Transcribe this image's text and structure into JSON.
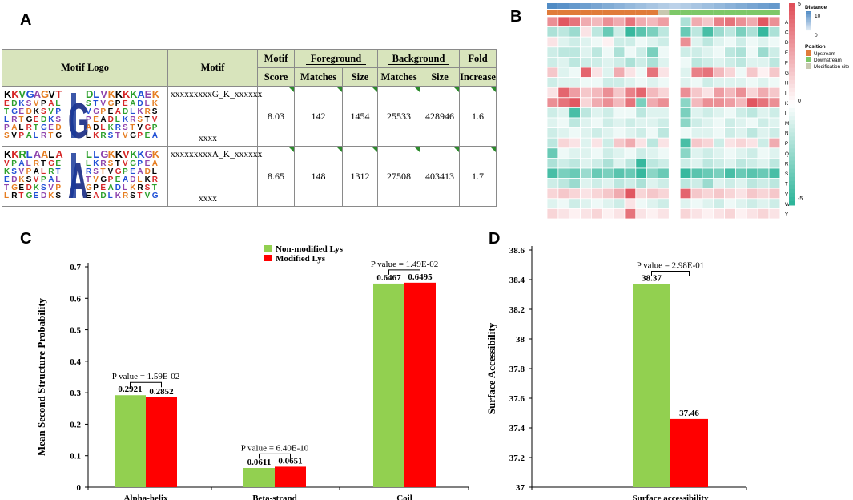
{
  "panel_labels": {
    "a": "A",
    "b": "B",
    "c": "C",
    "d": "D"
  },
  "panelA": {
    "headers": {
      "motif_logo": "Motif Logo",
      "motif": "Motif",
      "motif_score_1": "Motif",
      "motif_score_2": "Score",
      "foreground": "Foreground",
      "background": "Background",
      "fold_1": "Fold",
      "fold_2": "Increase",
      "matches": "Matches",
      "size": "Size"
    },
    "rows": [
      {
        "motif_line1": "xxxxxxxxxG_K_xxxxxx",
        "motif_line2": "xxxx",
        "score": "8.03",
        "fg_matches": "142",
        "fg_size": "1454",
        "bg_matches": "25533",
        "bg_size": "428946",
        "fold": "1.6",
        "logo_left": "KKVGAGVT",
        "logo_center": "G",
        "logo_right": "DLVKKKKAEK"
      },
      {
        "motif_line1": "xxxxxxxxxA_K_xxxxxx",
        "motif_line2": "xxxx",
        "score": "8.65",
        "fg_matches": "148",
        "fg_size": "1312",
        "bg_matches": "27508",
        "bg_size": "403413",
        "fold": "1.7",
        "logo_left": "KKRLAALA",
        "logo_center": "A",
        "logo_right": "LLGKKVKKGK"
      }
    ]
  },
  "panelB": {
    "row_labels": [
      "A",
      "C",
      "D",
      "E",
      "F",
      "G",
      "H",
      "I",
      "K",
      "L",
      "M",
      "N",
      "P",
      "Q",
      "R",
      "S",
      "T",
      "V",
      "W",
      "Y"
    ],
    "colorbar_ticks": [
      "5",
      "0",
      "-5"
    ],
    "distance_title": "Distance",
    "distance_ticks": [
      "10",
      "0"
    ],
    "position_title": "Position",
    "position_items": [
      "Upstream",
      "Downstream",
      "Modification site"
    ],
    "colors": {
      "high": "#e0505a",
      "mid": "#ffffff",
      "low": "#2fb59a",
      "upstream": "#e07b39",
      "downstream": "#7dc868",
      "site": "#c8c8b0",
      "distance": "#3e7fbf"
    },
    "num_columns": 21,
    "matrix": [
      [
        1.6,
        2.4,
        2.0,
        1.2,
        1.0,
        1.6,
        1.2,
        2.0,
        1.2,
        1.0,
        1.4,
        0,
        -1.0,
        1.2,
        0.8,
        1.8,
        2.0,
        1.6,
        1.2,
        2.4,
        1.6
      ],
      [
        -1.0,
        -0.8,
        -1.2,
        0.4,
        -0.8,
        -1.8,
        -0.6,
        -2.4,
        -2.0,
        -1.6,
        -0.8,
        0,
        -1.8,
        -0.8,
        -2.2,
        -1.2,
        -0.8,
        -1.6,
        -1.0,
        -2.4,
        -1.0
      ],
      [
        0.4,
        -0.4,
        -0.6,
        -0.4,
        -0.2,
        0.2,
        -0.6,
        -0.6,
        -0.2,
        -0.4,
        -0.6,
        0,
        1.6,
        -0.4,
        -0.8,
        -0.4,
        -0.2,
        -0.6,
        -0.2,
        -0.4,
        -0.2
      ],
      [
        -0.6,
        -0.8,
        -0.8,
        -0.4,
        -0.8,
        -0.2,
        -1.0,
        -0.2,
        -0.6,
        -1.6,
        -0.2,
        0,
        -0.6,
        -0.6,
        -0.4,
        -0.2,
        -0.8,
        -1.0,
        -0.2,
        -1.2,
        -0.6
      ],
      [
        -0.6,
        -0.4,
        -0.8,
        -0.6,
        -0.6,
        -0.4,
        -0.6,
        -1.0,
        -0.6,
        -1.0,
        -0.4,
        0,
        -0.2,
        -0.8,
        -0.6,
        -0.4,
        -0.6,
        -0.8,
        -0.4,
        -0.4,
        -0.8
      ],
      [
        0.8,
        -0.4,
        -0.2,
        2.2,
        0.4,
        -0.4,
        1.2,
        0.4,
        -0.2,
        2.0,
        0.4,
        0,
        -0.4,
        1.8,
        2.0,
        1.0,
        0.6,
        -0.2,
        0.8,
        0.2,
        0.8
      ],
      [
        -0.6,
        -0.4,
        -0.4,
        -0.2,
        -0.2,
        -0.6,
        -0.6,
        -0.4,
        -0.2,
        -0.4,
        -0.2,
        0,
        -0.4,
        -0.2,
        -0.6,
        -0.4,
        -0.4,
        -0.4,
        -0.2,
        -0.4,
        -0.2
      ],
      [
        0.4,
        2.2,
        1.4,
        0.8,
        1.0,
        1.6,
        0.8,
        1.8,
        2.2,
        1.0,
        0.6,
        0,
        1.6,
        0.8,
        0.4,
        1.4,
        1.0,
        1.6,
        0.6,
        1.2,
        0.8
      ],
      [
        1.6,
        2.0,
        2.4,
        0.6,
        1.2,
        1.6,
        1.0,
        2.0,
        -1.6,
        1.2,
        1.6,
        0,
        -1.4,
        1.0,
        1.6,
        1.6,
        1.4,
        1.0,
        2.4,
        2.0,
        1.6
      ],
      [
        -0.6,
        -0.4,
        -2.2,
        -0.8,
        -0.4,
        -0.6,
        -0.2,
        -0.2,
        -0.8,
        -0.4,
        -0.4,
        0,
        -1.6,
        -0.4,
        -0.6,
        -0.4,
        -0.2,
        -0.6,
        -0.8,
        -0.4,
        -0.6
      ],
      [
        -0.4,
        -0.2,
        -0.8,
        -0.4,
        -0.2,
        -0.6,
        -0.4,
        -0.6,
        -0.4,
        -0.4,
        -0.6,
        0,
        -1.4,
        -0.6,
        -0.4,
        -0.2,
        -0.6,
        -0.4,
        -0.2,
        -0.6,
        -0.4
      ],
      [
        -0.6,
        -0.4,
        -0.2,
        -0.4,
        -0.6,
        -0.4,
        -0.2,
        -0.4,
        -0.6,
        -0.2,
        -0.8,
        0,
        -0.2,
        -0.4,
        -0.4,
        -0.2,
        -0.6,
        -0.4,
        -0.8,
        -0.4,
        -0.6
      ],
      [
        -0.8,
        0.6,
        0.4,
        -0.4,
        0.4,
        -0.6,
        0.8,
        1.2,
        0.4,
        -0.8,
        0.4,
        0,
        -2.2,
        0.8,
        0.6,
        -0.6,
        0.4,
        0.6,
        0.4,
        -0.6,
        1.2
      ],
      [
        -1.8,
        -0.2,
        -0.4,
        -0.4,
        -0.2,
        -0.6,
        -0.4,
        -0.2,
        -0.6,
        -0.4,
        -0.2,
        0,
        -1.4,
        -0.4,
        -0.6,
        -0.4,
        -0.2,
        -0.4,
        -0.6,
        -0.2,
        -0.4
      ],
      [
        -1.0,
        -0.6,
        -0.8,
        -0.4,
        -0.6,
        -1.0,
        -0.4,
        -0.8,
        -2.4,
        -0.8,
        -0.6,
        0,
        -0.6,
        -0.4,
        -0.8,
        -0.6,
        -0.4,
        -0.8,
        -0.6,
        -0.4,
        -0.8
      ],
      [
        -2.2,
        -1.6,
        -1.8,
        -1.2,
        -1.8,
        -1.6,
        -2.0,
        -1.8,
        -2.4,
        -1.4,
        -1.8,
        0,
        -2.4,
        -2.0,
        -1.8,
        -1.6,
        -2.2,
        -1.8,
        -2.0,
        -1.8,
        -2.2
      ],
      [
        -0.6,
        -0.8,
        -1.2,
        -0.4,
        -0.6,
        -0.4,
        -0.8,
        -0.6,
        -1.0,
        -0.4,
        -0.6,
        0,
        -0.8,
        -0.6,
        -1.2,
        -0.4,
        -0.6,
        -0.4,
        -0.8,
        -0.6,
        -0.8
      ],
      [
        0.6,
        0.8,
        0.6,
        0.4,
        0.6,
        0.8,
        1.2,
        2.4,
        0.6,
        0.8,
        0.6,
        0,
        2.2,
        0.8,
        0.6,
        0.8,
        0.6,
        0.4,
        0.8,
        0.6,
        0.8
      ],
      [
        -0.4,
        -0.2,
        -0.6,
        -0.4,
        -0.2,
        -0.4,
        -0.6,
        0.4,
        -0.2,
        -0.4,
        -0.6,
        0,
        -0.4,
        -0.2,
        -0.4,
        -0.6,
        -0.2,
        -0.4,
        -0.6,
        -0.4,
        -0.6
      ],
      [
        0.6,
        0.4,
        0.2,
        0.4,
        0.6,
        0.2,
        0.4,
        2.0,
        0.4,
        0.2,
        0.4,
        0,
        0.6,
        0.4,
        0.2,
        0.4,
        0.6,
        0.2,
        0.4,
        0.6,
        0.4
      ]
    ]
  },
  "chart_data": [
    {
      "id": "C",
      "type": "bar",
      "categories": [
        "Alpha-helix",
        "Beta-strand",
        "Coil"
      ],
      "series": [
        {
          "name": "Non-modified Lys",
          "values": [
            0.2921,
            0.0611,
            0.6467
          ],
          "color": "#92d050"
        },
        {
          "name": "Modified Lys",
          "values": [
            0.2852,
            0.0651,
            0.6495
          ],
          "color": "#ff0000"
        }
      ],
      "value_labels": [
        [
          "0.2921",
          "0.2852"
        ],
        [
          "0.0611",
          "0.0651"
        ],
        [
          "0.6467",
          "0.6495"
        ]
      ],
      "annotations": [
        "P value = 1.59E-02",
        "P value = 6.40E-10",
        "P value = 1.49E-02"
      ],
      "ylabel": "Mean Second Structure Probability",
      "ylim": [
        0,
        0.7
      ],
      "yticks": [
        0,
        0.1,
        0.2,
        0.3,
        0.4,
        0.5,
        0.6,
        0.7
      ],
      "ytick_labels": [
        "0",
        "0.1",
        "0.2",
        "0.3",
        "0.4",
        "0.5",
        "0.6",
        "0.7"
      ],
      "legend": "top-center"
    },
    {
      "id": "D",
      "type": "bar",
      "categories": [
        "Surface accessibility"
      ],
      "series": [
        {
          "name": "Non-modified Lys",
          "values": [
            38.37
          ],
          "color": "#92d050"
        },
        {
          "name": "Modified Lys",
          "values": [
            37.46
          ],
          "color": "#ff0000"
        }
      ],
      "value_labels": [
        [
          "38.37",
          "37.46"
        ]
      ],
      "annotations": [
        "P value = 2.98E-01"
      ],
      "ylabel": "Surface Accessibility",
      "ylim": [
        37,
        38.6
      ],
      "yticks": [
        37,
        37.2,
        37.4,
        37.6,
        37.8,
        38,
        38.2,
        38.4,
        38.6
      ],
      "ytick_labels": [
        "37",
        "37.2",
        "37.4",
        "37.6",
        "37.8",
        "38",
        "38.2",
        "38.4",
        "38.6"
      ]
    }
  ]
}
